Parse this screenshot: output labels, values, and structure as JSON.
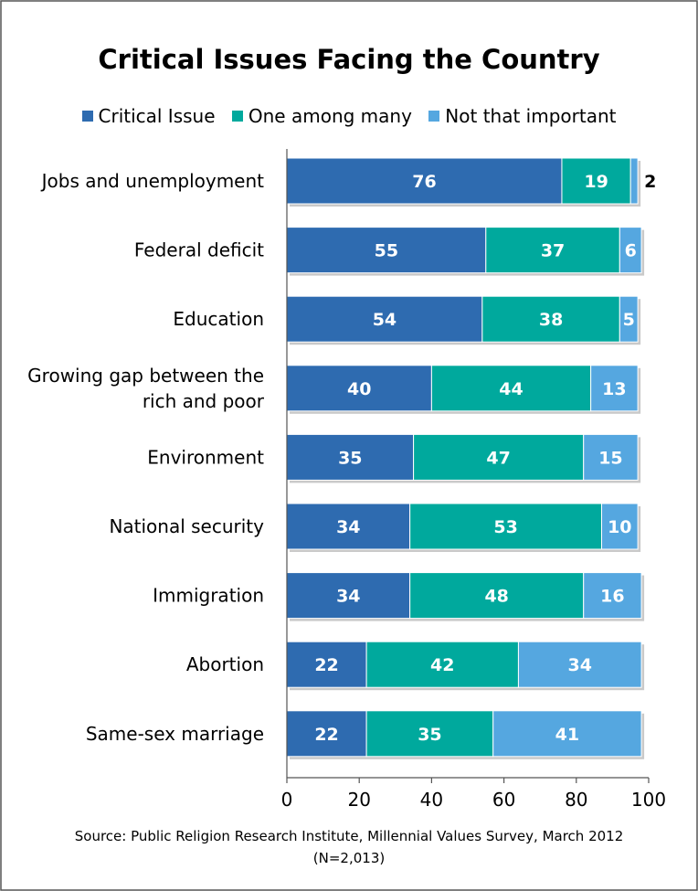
{
  "chart_data": {
    "type": "bar",
    "orientation": "horizontal",
    "stacked": true,
    "title": "Critical Issues Facing the Country",
    "categories": [
      "Jobs and unemployment",
      "Federal deficit",
      "Education",
      "Growing gap between the rich and poor",
      "Environment",
      "National security",
      "Immigration",
      "Abortion",
      "Same-sex marriage"
    ],
    "series": [
      {
        "name": "Critical Issue",
        "color": "#2e6bb0",
        "values": [
          76,
          55,
          54,
          40,
          35,
          34,
          34,
          22,
          22
        ]
      },
      {
        "name": "One among many",
        "color": "#00a99d",
        "values": [
          19,
          37,
          38,
          44,
          47,
          53,
          48,
          42,
          35
        ]
      },
      {
        "name": "Not that important",
        "color": "#55a7e0",
        "values": [
          2,
          6,
          5,
          13,
          15,
          10,
          16,
          34,
          41
        ]
      }
    ],
    "xlim": [
      0,
      100
    ],
    "xticks": [
      "0",
      "20",
      "40",
      "60",
      "80",
      "100"
    ],
    "legend": "top",
    "grid": false,
    "source": "Source: Public Religion Research Institute, Millennial Values Survey, March 2012",
    "note": "(N=2,013)"
  }
}
